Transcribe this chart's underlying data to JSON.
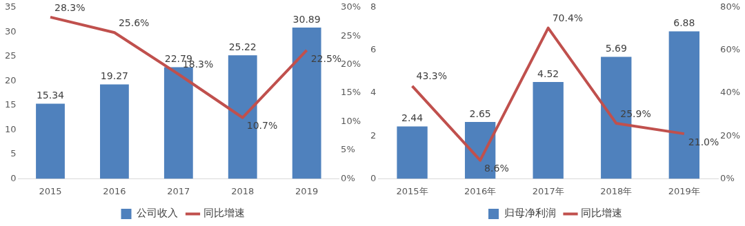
{
  "chart_data": [
    {
      "type": "bar",
      "categories": [
        "2015",
        "2016",
        "2017",
        "2018",
        "2019"
      ],
      "ylim": [
        0,
        35
      ],
      "yticks": [
        0,
        5,
        10,
        15,
        20,
        25,
        30,
        35
      ],
      "y2lim": [
        0,
        30
      ],
      "y2ticks": [
        {
          "value": 0,
          "label": "0%"
        },
        {
          "value": 5,
          "label": "5%"
        },
        {
          "value": 10,
          "label": "10%"
        },
        {
          "value": 15,
          "label": "15%"
        },
        {
          "value": 20,
          "label": "20%"
        },
        {
          "value": 25,
          "label": "25%"
        },
        {
          "value": 30,
          "label": "30%"
        }
      ],
      "legend": "bottom",
      "grid": false,
      "marker": "none",
      "line_style": "solid",
      "series": [
        {
          "name": "公司收入",
          "color": "#4f81bd",
          "values": [
            15.34,
            19.27,
            22.79,
            25.22,
            30.89
          ],
          "value_labels": [
            "15.34",
            "19.27",
            "22.79",
            "25.22",
            "30.89"
          ]
        },
        {
          "name": "同比增速",
          "type": "line",
          "axis": "y2",
          "color": "#c0504d",
          "values": [
            28.3,
            25.6,
            18.3,
            10.7,
            22.5
          ],
          "value_labels": [
            "28.3%",
            "25.6%",
            "18.3%",
            "10.7%",
            "22.5%"
          ]
        }
      ]
    },
    {
      "type": "bar",
      "categories": [
        "2015年",
        "2016年",
        "2017年",
        "2018年",
        "2019年"
      ],
      "ylim": [
        0,
        8
      ],
      "yticks": [
        0,
        2,
        4,
        6,
        8
      ],
      "y2lim": [
        0,
        80
      ],
      "y2ticks": [
        {
          "value": 0,
          "label": "0%"
        },
        {
          "value": 20,
          "label": "20%"
        },
        {
          "value": 40,
          "label": "40%"
        },
        {
          "value": 60,
          "label": "60%"
        },
        {
          "value": 80,
          "label": "80%"
        }
      ],
      "legend": "bottom",
      "grid": false,
      "marker": "none",
      "line_style": "solid",
      "series": [
        {
          "name": "归母净利润",
          "color": "#4f81bd",
          "values": [
            2.44,
            2.65,
            4.52,
            5.69,
            6.88
          ],
          "value_labels": [
            "2.44",
            "2.65",
            "4.52",
            "5.69",
            "6.88"
          ]
        },
        {
          "name": "同比增速",
          "type": "line",
          "axis": "y2",
          "color": "#c0504d",
          "values": [
            43.3,
            8.6,
            70.4,
            25.9,
            21.0
          ],
          "value_labels": [
            "43.3%",
            "8.6%",
            "70.4%",
            "25.9%",
            "21.0%"
          ]
        }
      ]
    }
  ]
}
